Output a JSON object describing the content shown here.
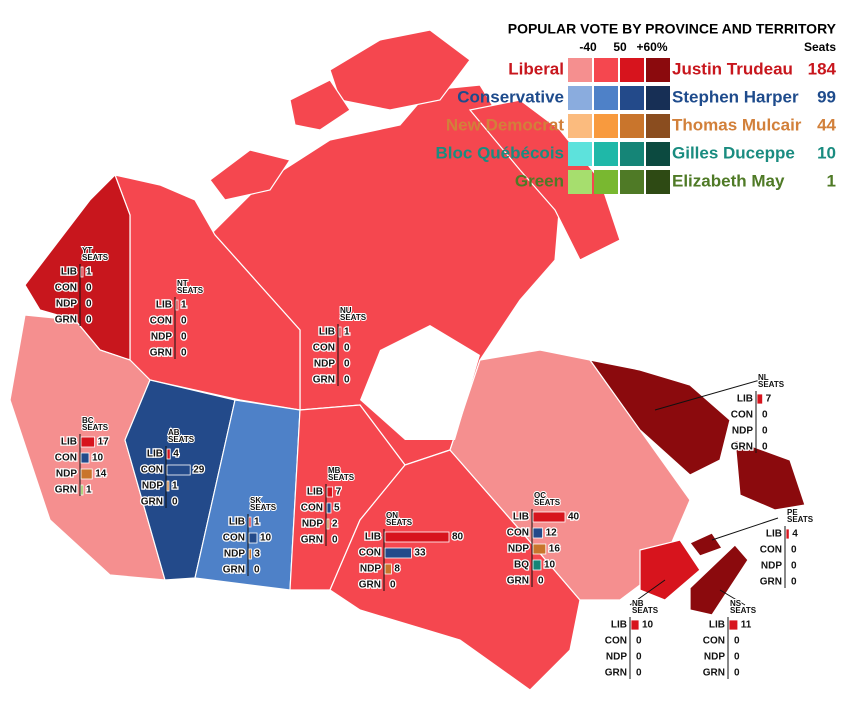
{
  "title": "POPULAR VOTE BY PROVINCE AND TERRITORY",
  "scale_labels": [
    "-40",
    "50",
    "+60%"
  ],
  "seats_header": "Seats",
  "box_label": "SEATS",
  "parties": [
    {
      "name": "Liberal",
      "leader": "Justin Trudeau",
      "seats": 184,
      "color": "#c8161d",
      "shades": [
        "#f58f8f",
        "#f5474f",
        "#d7141d",
        "#8b0a0d"
      ]
    },
    {
      "name": "Conservative",
      "leader": "Stephen Harper",
      "seats": 99,
      "color": "#1e4b8c",
      "shades": [
        "#8aacde",
        "#4e81c8",
        "#234a8a",
        "#172f55"
      ]
    },
    {
      "name": "New Democrat",
      "leader": "Thomas Mulcair",
      "seats": 44,
      "color": "#d2803a",
      "shades": [
        "#fbbb7e",
        "#f89a3e",
        "#c9752c",
        "#8a4d1f"
      ]
    },
    {
      "name": "Bloc Québécois",
      "leader": "Gilles Duceppe",
      "seats": 10,
      "color": "#1a8c80",
      "shades": [
        "#5de2dc",
        "#1fb8a8",
        "#158577",
        "#0c4a40"
      ]
    },
    {
      "name": "Green",
      "leader": "Elizabeth May",
      "seats": 1,
      "color": "#4f7a26",
      "shades": [
        "#a6de6e",
        "#79b830",
        "#4f7a26",
        "#2e4a14"
      ]
    }
  ],
  "provinces": [
    {
      "abbr": "YT",
      "color": "#c8161d",
      "rows": [
        {
          "party": "LIB",
          "seats": 1,
          "color": "#d7141d"
        },
        {
          "party": "CON",
          "seats": 0,
          "color": "#234a8a"
        },
        {
          "party": "NDP",
          "seats": 0,
          "color": "#c9752c"
        },
        {
          "party": "GRN",
          "seats": 0,
          "color": "#79b830"
        }
      ]
    },
    {
      "abbr": "NT",
      "color": "#f5474f",
      "rows": [
        {
          "party": "LIB",
          "seats": 1,
          "color": "#d7141d"
        },
        {
          "party": "CON",
          "seats": 0,
          "color": "#234a8a"
        },
        {
          "party": "NDP",
          "seats": 0,
          "color": "#c9752c"
        },
        {
          "party": "GRN",
          "seats": 0,
          "color": "#79b830"
        }
      ]
    },
    {
      "abbr": "NU",
      "color": "#f5474f",
      "rows": [
        {
          "party": "LIB",
          "seats": 1,
          "color": "#d7141d"
        },
        {
          "party": "CON",
          "seats": 0,
          "color": "#234a8a"
        },
        {
          "party": "NDP",
          "seats": 0,
          "color": "#c9752c"
        },
        {
          "party": "GRN",
          "seats": 0,
          "color": "#79b830"
        }
      ]
    },
    {
      "abbr": "BC",
      "color": "#f58f8f",
      "rows": [
        {
          "party": "LIB",
          "seats": 17,
          "color": "#d7141d"
        },
        {
          "party": "CON",
          "seats": 10,
          "color": "#234a8a"
        },
        {
          "party": "NDP",
          "seats": 14,
          "color": "#c9752c"
        },
        {
          "party": "GRN",
          "seats": 1,
          "color": "#79b830"
        }
      ]
    },
    {
      "abbr": "AB",
      "color": "#234a8a",
      "rows": [
        {
          "party": "LIB",
          "seats": 4,
          "color": "#d7141d"
        },
        {
          "party": "CON",
          "seats": 29,
          "color": "#234a8a"
        },
        {
          "party": "NDP",
          "seats": 1,
          "color": "#c9752c"
        },
        {
          "party": "GRN",
          "seats": 0,
          "color": "#79b830"
        }
      ]
    },
    {
      "abbr": "SK",
      "color": "#4e81c8",
      "rows": [
        {
          "party": "LIB",
          "seats": 1,
          "color": "#d7141d"
        },
        {
          "party": "CON",
          "seats": 10,
          "color": "#234a8a"
        },
        {
          "party": "NDP",
          "seats": 3,
          "color": "#c9752c"
        },
        {
          "party": "GRN",
          "seats": 0,
          "color": "#79b830"
        }
      ]
    },
    {
      "abbr": "MB",
      "color": "#f5474f",
      "rows": [
        {
          "party": "LIB",
          "seats": 7,
          "color": "#d7141d"
        },
        {
          "party": "CON",
          "seats": 5,
          "color": "#234a8a"
        },
        {
          "party": "NDP",
          "seats": 2,
          "color": "#c9752c"
        },
        {
          "party": "GRN",
          "seats": 0,
          "color": "#79b830"
        }
      ]
    },
    {
      "abbr": "ON",
      "color": "#f5474f",
      "rows": [
        {
          "party": "LIB",
          "seats": 80,
          "color": "#d7141d"
        },
        {
          "party": "CON",
          "seats": 33,
          "color": "#234a8a"
        },
        {
          "party": "NDP",
          "seats": 8,
          "color": "#c9752c"
        },
        {
          "party": "GRN",
          "seats": 0,
          "color": "#79b830"
        }
      ]
    },
    {
      "abbr": "QC",
      "color": "#f58f8f",
      "rows": [
        {
          "party": "LIB",
          "seats": 40,
          "color": "#d7141d"
        },
        {
          "party": "CON",
          "seats": 12,
          "color": "#234a8a"
        },
        {
          "party": "NDP",
          "seats": 16,
          "color": "#c9752c"
        },
        {
          "party": "BQ",
          "seats": 10,
          "color": "#158577"
        },
        {
          "party": "GRN",
          "seats": 0,
          "color": "#79b830"
        }
      ]
    },
    {
      "abbr": "NL",
      "color": "#8b0a0d",
      "rows": [
        {
          "party": "LIB",
          "seats": 7,
          "color": "#d7141d"
        },
        {
          "party": "CON",
          "seats": 0,
          "color": "#234a8a"
        },
        {
          "party": "NDP",
          "seats": 0,
          "color": "#c9752c"
        },
        {
          "party": "GRN",
          "seats": 0,
          "color": "#79b830"
        }
      ]
    },
    {
      "abbr": "PE",
      "color": "#8b0a0d",
      "rows": [
        {
          "party": "LIB",
          "seats": 4,
          "color": "#d7141d"
        },
        {
          "party": "CON",
          "seats": 0,
          "color": "#234a8a"
        },
        {
          "party": "NDP",
          "seats": 0,
          "color": "#c9752c"
        },
        {
          "party": "GRN",
          "seats": 0,
          "color": "#79b830"
        }
      ]
    },
    {
      "abbr": "NB",
      "color": "#d7141d",
      "rows": [
        {
          "party": "LIB",
          "seats": 10,
          "color": "#d7141d"
        },
        {
          "party": "CON",
          "seats": 0,
          "color": "#234a8a"
        },
        {
          "party": "NDP",
          "seats": 0,
          "color": "#c9752c"
        },
        {
          "party": "GRN",
          "seats": 0,
          "color": "#79b830"
        }
      ]
    },
    {
      "abbr": "NS",
      "color": "#8b0a0d",
      "rows": [
        {
          "party": "LIB",
          "seats": 11,
          "color": "#d7141d"
        },
        {
          "party": "CON",
          "seats": 0,
          "color": "#234a8a"
        },
        {
          "party": "NDP",
          "seats": 0,
          "color": "#c9752c"
        },
        {
          "party": "GRN",
          "seats": 0,
          "color": "#79b830"
        }
      ]
    }
  ]
}
